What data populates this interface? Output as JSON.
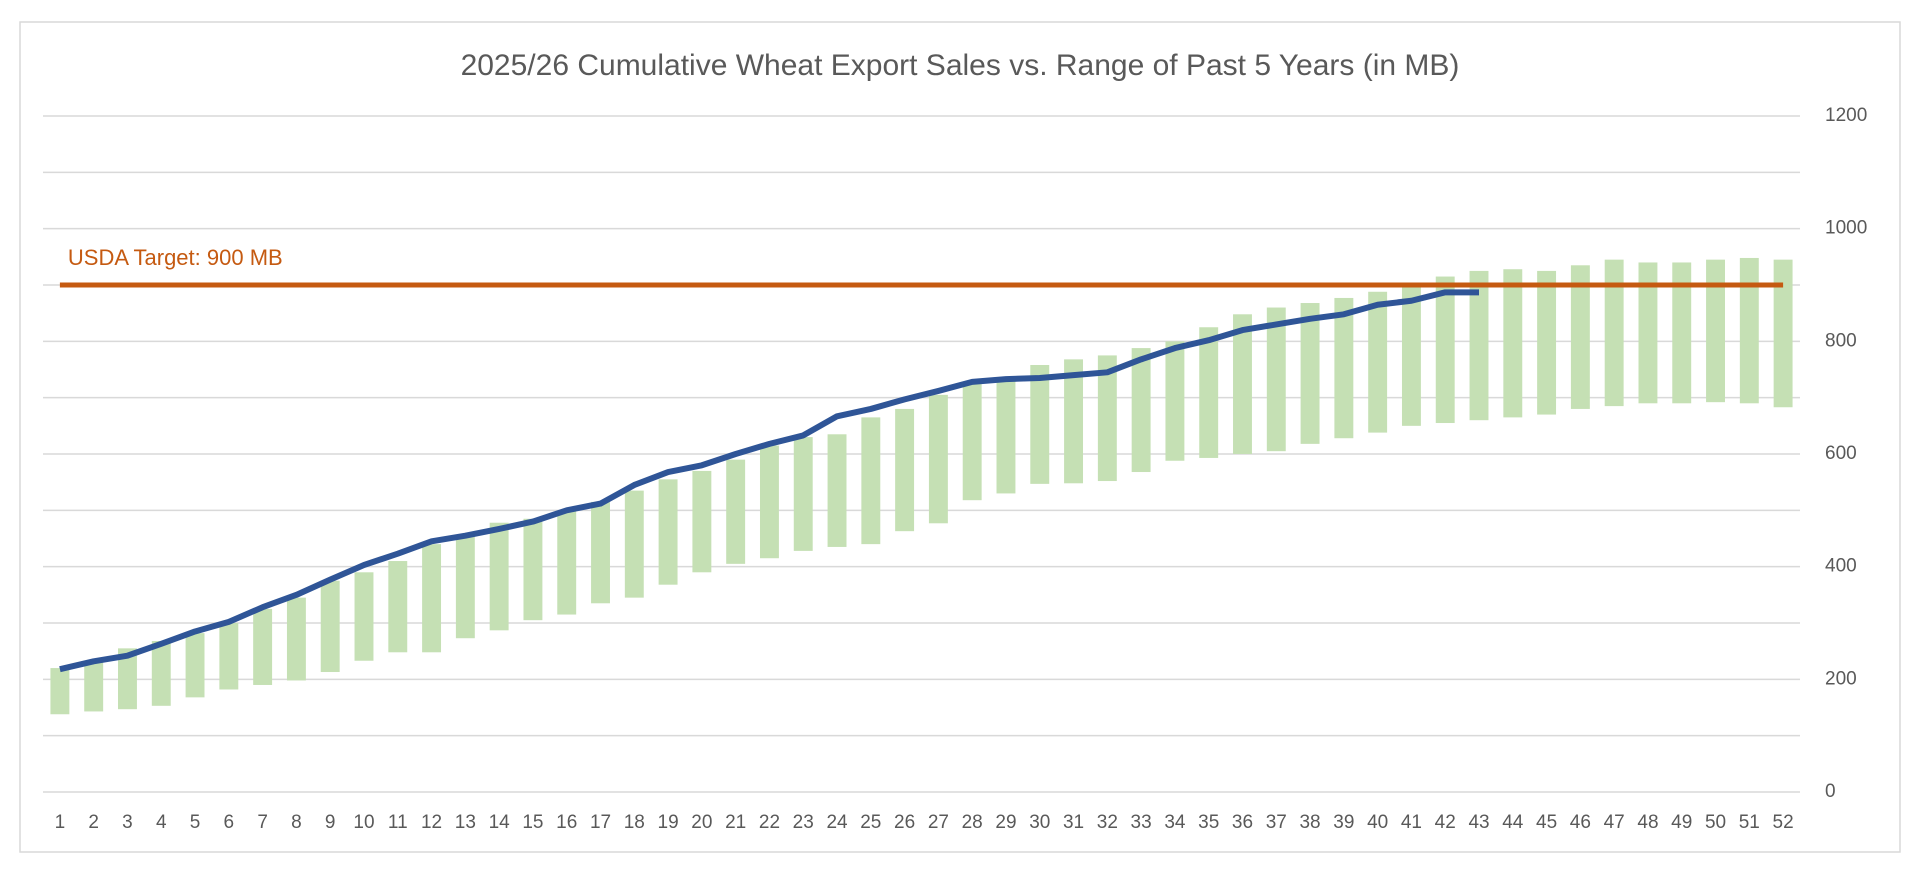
{
  "chart_data": {
    "type": "range-bar-line",
    "title": "2025/26 Cumulative Wheat Export Sales vs. Range of Past 5 Years (in MB)",
    "categories": [
      1,
      2,
      3,
      4,
      5,
      6,
      7,
      8,
      9,
      10,
      11,
      12,
      13,
      14,
      15,
      16,
      17,
      18,
      19,
      20,
      21,
      22,
      23,
      24,
      25,
      26,
      27,
      28,
      29,
      30,
      31,
      32,
      33,
      34,
      35,
      36,
      37,
      38,
      39,
      40,
      41,
      42,
      43,
      44,
      45,
      46,
      47,
      48,
      49,
      50,
      51,
      52
    ],
    "range": {
      "color": "#c5e0b4",
      "low": [
        138,
        143,
        147,
        153,
        168,
        182,
        190,
        198,
        213,
        233,
        248,
        248,
        273,
        287,
        305,
        315,
        335,
        345,
        368,
        390,
        405,
        415,
        428,
        435,
        440,
        463,
        477,
        518,
        530,
        547,
        548,
        552,
        568,
        588,
        593,
        600,
        605,
        618,
        628,
        638,
        650,
        655,
        660,
        665,
        670,
        680,
        685,
        690,
        690,
        692,
        690,
        683
      ],
      "high": [
        220,
        232,
        255,
        268,
        282,
        300,
        325,
        345,
        375,
        390,
        410,
        440,
        455,
        478,
        485,
        500,
        515,
        535,
        555,
        570,
        590,
        615,
        630,
        635,
        665,
        680,
        705,
        725,
        735,
        758,
        768,
        775,
        788,
        800,
        825,
        848,
        860,
        868,
        877,
        888,
        898,
        915,
        925,
        928,
        925,
        935,
        945,
        940,
        940,
        945,
        948,
        945
      ]
    },
    "line": {
      "color": "#2f5597",
      "values": [
        218,
        232,
        242,
        263,
        285,
        302,
        328,
        350,
        377,
        403,
        423,
        445,
        455,
        467,
        480,
        500,
        512,
        545,
        568,
        580,
        600,
        618,
        633,
        667,
        680,
        697,
        712,
        728,
        733,
        735,
        740,
        745,
        768,
        788,
        802,
        820,
        830,
        840,
        848,
        865,
        872,
        887,
        887,
        null,
        null,
        null,
        null,
        null,
        null,
        null,
        null,
        null
      ]
    },
    "target": {
      "value": 900,
      "label": "USDA Target: 900 MB",
      "color": "#c55a11"
    },
    "ylim": [
      0,
      1200
    ],
    "yticks": [
      0,
      200,
      400,
      600,
      800,
      1000,
      1200
    ],
    "minor_yticks": [
      100,
      300,
      500,
      700,
      900,
      1100
    ],
    "grid": true,
    "y_axis_side": "right"
  }
}
